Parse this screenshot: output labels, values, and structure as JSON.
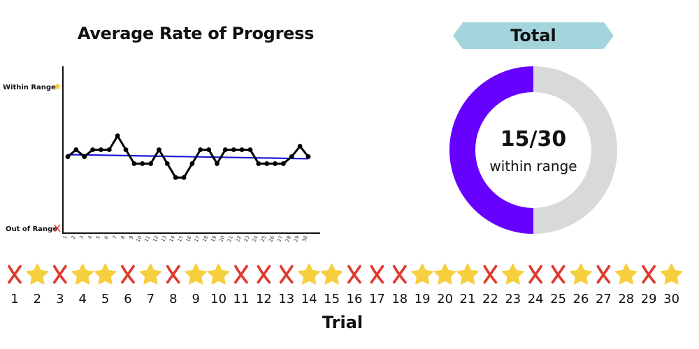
{
  "chart_data": [
    {
      "type": "line",
      "title": "Average Rate of Progress",
      "x": [
        1,
        2,
        3,
        4,
        5,
        6,
        7,
        8,
        9,
        10,
        11,
        12,
        13,
        14,
        15,
        16,
        17,
        18,
        19,
        20,
        21,
        22,
        23,
        24,
        25,
        26,
        27,
        28,
        29,
        30
      ],
      "series": [
        {
          "values": [
            3,
            4,
            3,
            4,
            4,
            4,
            6,
            4,
            2,
            2,
            2,
            4,
            2,
            0,
            0,
            2,
            4,
            4,
            2,
            4,
            4,
            4,
            4,
            2,
            2,
            2,
            2,
            3,
            4.5,
            3
          ]
        },
        {
          "values_trend": [
            3.3,
            2.7
          ]
        }
      ],
      "y_labels": {
        "top": "Within Range",
        "bottom": "Out of Range"
      },
      "ylim": [
        -8,
        16
      ],
      "xlabel": "",
      "ylabel": "",
      "colors": {
        "series": "#000000",
        "trend": "#1a1ad6"
      }
    },
    {
      "type": "pie",
      "title": "Total",
      "labels": [
        "within range",
        "out of range"
      ],
      "values": [
        15,
        15
      ],
      "center_value": "15/30",
      "center_caption": "within range",
      "colors": [
        "#6600ff",
        "#d9d9d9"
      ]
    }
  ],
  "trials": {
    "axis_label": "Trial",
    "numbers": [
      "1",
      "2",
      "3",
      "4",
      "5",
      "6",
      "7",
      "8",
      "9",
      "10",
      "11",
      "12",
      "13",
      "14",
      "15",
      "16",
      "17",
      "18",
      "19",
      "20",
      "21",
      "22",
      "23",
      "24",
      "25",
      "26",
      "27",
      "28",
      "29",
      "30"
    ],
    "results": [
      "x",
      "star",
      "x",
      "star",
      "star",
      "x",
      "star",
      "x",
      "star",
      "star",
      "x",
      "x",
      "x",
      "star",
      "star",
      "x",
      "x",
      "x",
      "star",
      "star",
      "star",
      "x",
      "star",
      "x",
      "x",
      "star",
      "x",
      "star",
      "x",
      "star"
    ]
  },
  "colors": {
    "banner": "#a5d5dc",
    "star": "#f6cf3e",
    "cross": "#e03a2e"
  },
  "icons": {
    "within": "star-icon",
    "out": "cross-icon"
  }
}
